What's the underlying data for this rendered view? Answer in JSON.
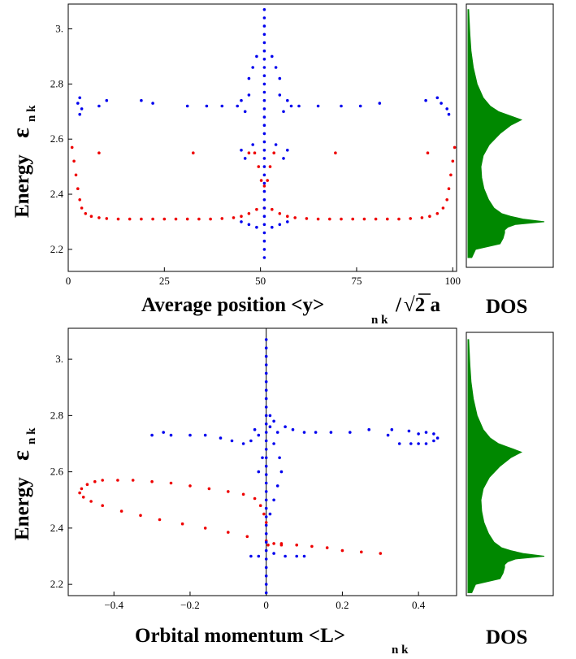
{
  "colors": {
    "blue": "#0000ee",
    "red": "#ee0000",
    "green": "#008800"
  },
  "labels": {
    "energy": "Energy",
    "eps": "ε",
    "nk": "n k",
    "top_x_pre": "Average position <y>",
    "top_x_sqrt": "√2 a",
    "bottom_x_pre": "Orbital momentum <L>",
    "dos": "DOS"
  },
  "chart_data": [
    {
      "type": "scatter",
      "name": "top-panel",
      "xlim": [
        0,
        101
      ],
      "ylim": [
        2.12,
        3.09
      ],
      "xticks": [
        0,
        25,
        50,
        75,
        100
      ],
      "yticks": [
        2.2,
        2.4,
        2.6,
        2.8,
        3.0
      ],
      "ytick_labels": [
        "2.2",
        "2.4",
        "2.6",
        "2.8",
        "3."
      ],
      "series": [
        {
          "color": "red",
          "points": [
            [
              1.0,
              2.57
            ],
            [
              1.5,
              2.52
            ],
            [
              2.0,
              2.47
            ],
            [
              2.5,
              2.42
            ],
            [
              3.0,
              2.38
            ],
            [
              3.5,
              2.35
            ],
            [
              4.5,
              2.33
            ],
            [
              6,
              2.32
            ],
            [
              8,
              2.315
            ],
            [
              10,
              2.312
            ],
            [
              13,
              2.31
            ],
            [
              16,
              2.31
            ],
            [
              19,
              2.31
            ],
            [
              22,
              2.31
            ],
            [
              25,
              2.31
            ],
            [
              28,
              2.31
            ],
            [
              31,
              2.31
            ],
            [
              34,
              2.31
            ],
            [
              37,
              2.31
            ],
            [
              40,
              2.312
            ],
            [
              43,
              2.315
            ],
            [
              45,
              2.32
            ],
            [
              47,
              2.33
            ],
            [
              49,
              2.345
            ],
            [
              51,
              2.35
            ],
            [
              53,
              2.345
            ],
            [
              55,
              2.33
            ],
            [
              57,
              2.32
            ],
            [
              59,
              2.315
            ],
            [
              62,
              2.312
            ],
            [
              65,
              2.31
            ],
            [
              68,
              2.31
            ],
            [
              71,
              2.31
            ],
            [
              74,
              2.31
            ],
            [
              77,
              2.31
            ],
            [
              80,
              2.31
            ],
            [
              83,
              2.31
            ],
            [
              86,
              2.31
            ],
            [
              89,
              2.312
            ],
            [
              92,
              2.315
            ],
            [
              94,
              2.32
            ],
            [
              96,
              2.33
            ],
            [
              97.5,
              2.35
            ],
            [
              98.5,
              2.38
            ],
            [
              99,
              2.42
            ],
            [
              99.5,
              2.47
            ],
            [
              100,
              2.52
            ],
            [
              100.5,
              2.57
            ],
            [
              48.5,
              2.55
            ],
            [
              49.5,
              2.5
            ],
            [
              50.2,
              2.45
            ],
            [
              51,
              2.43
            ],
            [
              51.8,
              2.45
            ],
            [
              52.5,
              2.5
            ],
            [
              53.5,
              2.55
            ],
            [
              8,
              2.55
            ],
            [
              32.5,
              2.55
            ],
            [
              47,
              2.55
            ],
            [
              69.5,
              2.55
            ],
            [
              93.5,
              2.55
            ]
          ]
        },
        {
          "color": "blue",
          "points": [
            [
              51,
              2.17
            ],
            [
              51,
              2.2
            ],
            [
              51,
              2.23
            ],
            [
              51,
              2.26
            ],
            [
              51,
              2.29
            ],
            [
              51,
              2.32
            ],
            [
              51,
              2.35
            ],
            [
              51,
              2.38
            ],
            [
              51,
              2.41
            ],
            [
              51,
              2.44
            ],
            [
              51,
              2.47
            ],
            [
              51,
              2.5
            ],
            [
              51,
              2.53
            ],
            [
              51,
              2.56
            ],
            [
              51,
              2.59
            ],
            [
              51,
              2.62
            ],
            [
              51,
              2.65
            ],
            [
              51,
              2.68
            ],
            [
              51,
              2.71
            ],
            [
              51,
              2.74
            ],
            [
              51,
              2.77
            ],
            [
              51,
              2.8
            ],
            [
              51,
              2.83
            ],
            [
              51,
              2.86
            ],
            [
              51,
              2.89
            ],
            [
              51,
              2.92
            ],
            [
              51,
              2.95
            ],
            [
              51,
              2.98
            ],
            [
              51,
              3.01
            ],
            [
              51,
              3.04
            ],
            [
              51,
              3.07
            ],
            [
              45,
              2.3
            ],
            [
              47,
              2.29
            ],
            [
              49,
              2.28
            ],
            [
              53,
              2.28
            ],
            [
              55,
              2.29
            ],
            [
              57,
              2.3
            ],
            [
              45,
              2.56
            ],
            [
              46,
              2.53
            ],
            [
              48,
              2.58
            ],
            [
              54,
              2.58
            ],
            [
              56,
              2.53
            ],
            [
              57,
              2.56
            ],
            [
              44,
              2.72
            ],
            [
              45,
              2.74
            ],
            [
              46,
              2.7
            ],
            [
              47,
              2.76
            ],
            [
              55,
              2.76
            ],
            [
              56,
              2.7
            ],
            [
              57,
              2.74
            ],
            [
              58,
              2.72
            ],
            [
              47,
              2.82
            ],
            [
              48,
              2.86
            ],
            [
              49,
              2.9
            ],
            [
              53,
              2.9
            ],
            [
              54,
              2.86
            ],
            [
              55,
              2.82
            ],
            [
              3,
              2.69
            ],
            [
              3.5,
              2.71
            ],
            [
              2.5,
              2.73
            ],
            [
              3,
              2.75
            ],
            [
              8,
              2.72
            ],
            [
              10,
              2.74
            ],
            [
              19,
              2.74
            ],
            [
              22,
              2.73
            ],
            [
              31,
              2.72
            ],
            [
              36,
              2.72
            ],
            [
              40,
              2.72
            ],
            [
              60,
              2.72
            ],
            [
              65,
              2.72
            ],
            [
              71,
              2.72
            ],
            [
              76,
              2.72
            ],
            [
              81,
              2.73
            ],
            [
              93,
              2.74
            ],
            [
              96,
              2.75
            ],
            [
              97,
              2.73
            ],
            [
              98.5,
              2.71
            ],
            [
              99,
              2.69
            ]
          ]
        }
      ]
    },
    {
      "type": "scatter",
      "name": "bottom-panel",
      "xlim": [
        -0.52,
        0.5
      ],
      "ylim": [
        2.16,
        3.11
      ],
      "xticks": [
        -0.4,
        -0.2,
        0,
        0.2,
        0.4
      ],
      "xtick_labels": [
        "−0.4",
        "−0.2",
        "0",
        "0.2",
        "0.4"
      ],
      "yticks": [
        2.2,
        2.4,
        2.6,
        2.8,
        3.0
      ],
      "ytick_labels": [
        "2.2",
        "2.4",
        "2.6",
        "2.8",
        "3."
      ],
      "series": [
        {
          "color": "red",
          "points": [
            [
              -0.43,
              2.57
            ],
            [
              -0.45,
              2.565
            ],
            [
              -0.47,
              2.555
            ],
            [
              -0.485,
              2.54
            ],
            [
              -0.49,
              2.525
            ],
            [
              -0.48,
              2.51
            ],
            [
              -0.46,
              2.495
            ],
            [
              -0.43,
              2.48
            ],
            [
              -0.38,
              2.46
            ],
            [
              -0.33,
              2.445
            ],
            [
              -0.28,
              2.43
            ],
            [
              -0.22,
              2.415
            ],
            [
              -0.16,
              2.4
            ],
            [
              -0.1,
              2.385
            ],
            [
              -0.05,
              2.37
            ],
            [
              0.0,
              2.355
            ],
            [
              0.04,
              2.345
            ],
            [
              0.08,
              2.34
            ],
            [
              0.12,
              2.335
            ],
            [
              0.16,
              2.33
            ],
            [
              0.2,
              2.32
            ],
            [
              0.25,
              2.315
            ],
            [
              0.3,
              2.31
            ],
            [
              -0.39,
              2.57
            ],
            [
              -0.35,
              2.57
            ],
            [
              -0.3,
              2.565
            ],
            [
              -0.25,
              2.56
            ],
            [
              -0.2,
              2.55
            ],
            [
              -0.15,
              2.54
            ],
            [
              -0.1,
              2.53
            ],
            [
              -0.06,
              2.52
            ],
            [
              -0.03,
              2.505
            ],
            [
              -0.015,
              2.48
            ],
            [
              -0.006,
              2.45
            ],
            [
              0.0,
              2.42
            ],
            [
              0.005,
              2.34
            ],
            [
              0.02,
              2.345
            ],
            [
              0.04,
              2.34
            ]
          ]
        },
        {
          "color": "blue",
          "points": [
            [
              0.0,
              2.17
            ],
            [
              0.0,
              2.2
            ],
            [
              0.0,
              2.23
            ],
            [
              0.0,
              2.26
            ],
            [
              0.0,
              2.29
            ],
            [
              0.0,
              2.32
            ],
            [
              0.0,
              2.35
            ],
            [
              0.0,
              2.38
            ],
            [
              0.0,
              2.41
            ],
            [
              0.0,
              2.44
            ],
            [
              0.0,
              2.47
            ],
            [
              0.0,
              2.5
            ],
            [
              0.0,
              2.53
            ],
            [
              0.0,
              2.56
            ],
            [
              0.0,
              2.59
            ],
            [
              0.0,
              2.62
            ],
            [
              0.0,
              2.65
            ],
            [
              0.0,
              2.68
            ],
            [
              0.0,
              2.71
            ],
            [
              0.0,
              2.74
            ],
            [
              0.0,
              2.77
            ],
            [
              0.0,
              2.8
            ],
            [
              0.0,
              2.83
            ],
            [
              0.0,
              2.86
            ],
            [
              0.0,
              2.89
            ],
            [
              0.0,
              2.92
            ],
            [
              0.0,
              2.95
            ],
            [
              0.0,
              2.98
            ],
            [
              0.0,
              3.01
            ],
            [
              0.0,
              3.04
            ],
            [
              0.0,
              3.07
            ],
            [
              0.01,
              2.45
            ],
            [
              0.02,
              2.5
            ],
            [
              0.03,
              2.55
            ],
            [
              0.04,
              2.6
            ],
            [
              0.035,
              2.65
            ],
            [
              0.02,
              2.7
            ],
            [
              -0.01,
              2.65
            ],
            [
              -0.02,
              2.6
            ],
            [
              0.01,
              2.8
            ],
            [
              0.02,
              2.78
            ],
            [
              0.01,
              2.76
            ],
            [
              -0.02,
              2.3
            ],
            [
              0.02,
              2.31
            ],
            [
              0.05,
              2.3
            ],
            [
              0.08,
              2.3
            ],
            [
              0.1,
              2.3
            ],
            [
              -0.04,
              2.3
            ],
            [
              -0.27,
              2.74
            ],
            [
              -0.25,
              2.73
            ],
            [
              -0.2,
              2.73
            ],
            [
              -0.16,
              2.73
            ],
            [
              -0.12,
              2.72
            ],
            [
              -0.09,
              2.71
            ],
            [
              -0.06,
              2.7
            ],
            [
              -0.04,
              2.71
            ],
            [
              -0.03,
              2.75
            ],
            [
              -0.02,
              2.73
            ],
            [
              0.03,
              2.74
            ],
            [
              0.05,
              2.76
            ],
            [
              0.07,
              2.75
            ],
            [
              0.1,
              2.74
            ],
            [
              0.13,
              2.74
            ],
            [
              0.17,
              2.74
            ],
            [
              0.22,
              2.74
            ],
            [
              0.27,
              2.75
            ],
            [
              0.32,
              2.73
            ],
            [
              0.35,
              2.7
            ],
            [
              0.38,
              2.7
            ],
            [
              0.4,
              2.7
            ],
            [
              0.42,
              2.7
            ],
            [
              0.44,
              2.71
            ],
            [
              0.45,
              2.72
            ],
            [
              0.44,
              2.735
            ],
            [
              0.42,
              2.74
            ],
            [
              0.4,
              2.735
            ],
            [
              0.375,
              2.745
            ],
            [
              0.33,
              2.75
            ],
            [
              -0.3,
              2.73
            ]
          ]
        }
      ]
    },
    {
      "type": "area",
      "name": "dos-profile",
      "ylim_top": [
        2.12,
        3.09
      ],
      "ylim_bottom": [
        2.16,
        3.11
      ],
      "energy": [
        2.17,
        2.2,
        2.22,
        2.24,
        2.26,
        2.27,
        2.28,
        2.29,
        2.3,
        2.31,
        2.32,
        2.33,
        2.35,
        2.38,
        2.42,
        2.46,
        2.5,
        2.54,
        2.58,
        2.62,
        2.65,
        2.67,
        2.68,
        2.69,
        2.7,
        2.72,
        2.75,
        2.8,
        2.86,
        2.92,
        2.98,
        3.04,
        3.07
      ],
      "density": [
        0.05,
        0.1,
        0.42,
        0.46,
        0.48,
        0.48,
        0.52,
        0.62,
        1.0,
        0.72,
        0.56,
        0.44,
        0.34,
        0.27,
        0.21,
        0.18,
        0.17,
        0.2,
        0.28,
        0.42,
        0.56,
        0.7,
        0.6,
        0.5,
        0.4,
        0.29,
        0.2,
        0.12,
        0.07,
        0.04,
        0.025,
        0.015,
        0.01
      ]
    }
  ]
}
